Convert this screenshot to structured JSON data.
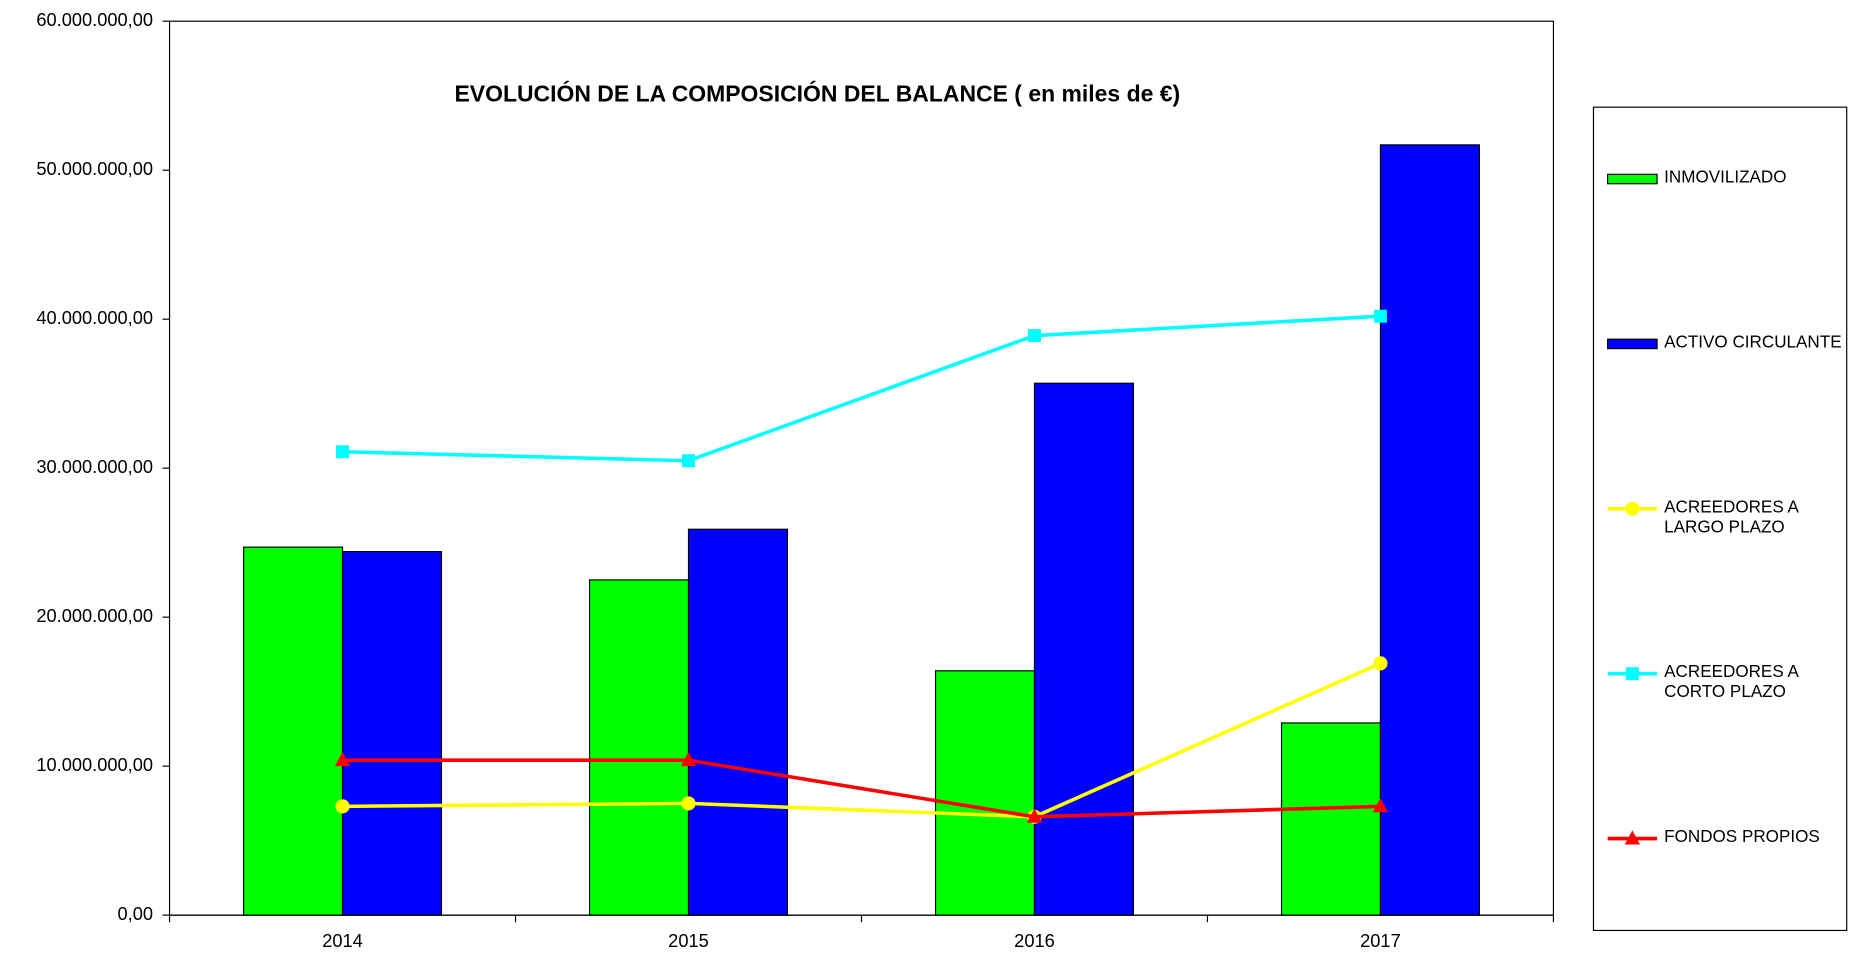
{
  "chart_data": {
    "type": "bar",
    "title": "EVOLUCIÓN DE LA COMPOSICIÓN DEL BALANCE  ( en miles de €)",
    "categories": [
      "2014",
      "2015",
      "2016",
      "2017"
    ],
    "series": [
      {
        "name": "INMOVILIZADO",
        "type": "bar",
        "color": "#00ff00",
        "values": [
          24700000,
          22500000,
          16400000,
          12900000
        ]
      },
      {
        "name": "ACTIVO CIRCULANTE",
        "type": "bar",
        "color": "#0000ff",
        "values": [
          24400000,
          25900000,
          35700000,
          51700000
        ]
      },
      {
        "name": "ACREEDORES A LARGO PLAZO",
        "type": "line",
        "marker": "circle",
        "color": "#ffff00",
        "values": [
          7300000,
          7500000,
          6600000,
          16900000
        ]
      },
      {
        "name": "ACREEDORES A CORTO PLAZO",
        "type": "line",
        "marker": "square",
        "color": "#00ffff",
        "values": [
          31100000,
          30500000,
          38900000,
          40200000
        ]
      },
      {
        "name": "FONDOS PROPIOS",
        "type": "line",
        "marker": "triangle",
        "color": "#ff0000",
        "values": [
          10400000,
          10400000,
          6600000,
          7300000
        ]
      }
    ],
    "ylim": [
      0,
      60000000
    ],
    "yticks": [
      {
        "value": 0,
        "label": "0,00"
      },
      {
        "value": 10000000,
        "label": "10.000.000,00"
      },
      {
        "value": 20000000,
        "label": "20.000.000,00"
      },
      {
        "value": 30000000,
        "label": "30.000.000,00"
      },
      {
        "value": 40000000,
        "label": "40.000.000,00"
      },
      {
        "value": 50000000,
        "label": "50.000.000,00"
      },
      {
        "value": 60000000,
        "label": "60.000.000,00"
      }
    ],
    "grid": false,
    "legend": "right"
  }
}
